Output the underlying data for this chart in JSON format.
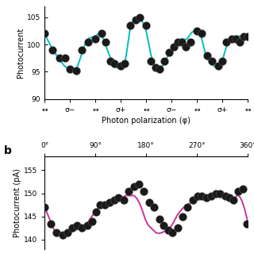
{
  "panel_a": {
    "ylabel": "Photocurrent",
    "xlabel": "Photon polarization (φ)",
    "ylim": [
      90,
      107
    ],
    "yticks": [
      90,
      95,
      100,
      105
    ],
    "curve_color": "#00BEBE",
    "dot_color": "#1a1a1a",
    "x_tick_labels": [
      "↔",
      "σ−",
      "↔",
      "σ+",
      "↔",
      "σ−",
      "↔",
      "σ+",
      "↔"
    ],
    "x_tick_positions": [
      0,
      0.125,
      0.25,
      0.375,
      0.5,
      0.625,
      0.75,
      0.875,
      1.0
    ],
    "scatter_x": [
      0.0,
      0.04,
      0.075,
      0.1,
      0.125,
      0.155,
      0.185,
      0.215,
      0.25,
      0.28,
      0.3,
      0.325,
      0.345,
      0.375,
      0.395,
      0.42,
      0.45,
      0.47,
      0.5,
      0.525,
      0.545,
      0.565,
      0.59,
      0.615,
      0.635,
      0.655,
      0.675,
      0.695,
      0.72,
      0.75,
      0.775,
      0.8,
      0.825,
      0.855,
      0.875,
      0.895,
      0.92,
      0.94,
      0.96,
      0.98,
      1.0
    ],
    "scatter_y": [
      102.0,
      99.0,
      97.5,
      97.5,
      95.5,
      95.2,
      99.0,
      100.5,
      101.0,
      102.0,
      100.5,
      97.0,
      96.5,
      96.0,
      96.5,
      103.5,
      104.5,
      105.0,
      103.5,
      97.0,
      95.8,
      95.5,
      97.0,
      98.5,
      99.5,
      100.5,
      100.5,
      99.5,
      100.5,
      102.5,
      102.0,
      98.0,
      97.0,
      96.0,
      97.0,
      100.5,
      101.0,
      101.0,
      100.5,
      101.5,
      101.5
    ],
    "curve_x": [
      0.0,
      0.02,
      0.05,
      0.08,
      0.1,
      0.125,
      0.155,
      0.185,
      0.215,
      0.25,
      0.275,
      0.3,
      0.325,
      0.345,
      0.375,
      0.4,
      0.42,
      0.445,
      0.47,
      0.5,
      0.525,
      0.545,
      0.565,
      0.59,
      0.615,
      0.635,
      0.655,
      0.68,
      0.7,
      0.72,
      0.745,
      0.77,
      0.795,
      0.82,
      0.845,
      0.87,
      0.895,
      0.92,
      0.945,
      0.97,
      1.0
    ],
    "curve_y": [
      102.0,
      100.5,
      98.5,
      97.0,
      96.0,
      95.5,
      95.5,
      98.5,
      101.0,
      101.5,
      102.0,
      100.0,
      97.5,
      96.0,
      95.8,
      97.5,
      102.5,
      104.5,
      104.5,
      102.5,
      98.0,
      96.2,
      95.8,
      96.5,
      98.5,
      99.5,
      100.5,
      101.0,
      101.0,
      102.0,
      102.5,
      101.5,
      98.0,
      96.5,
      95.8,
      96.5,
      99.5,
      101.0,
      101.5,
      101.5,
      101.5
    ]
  },
  "panel_b": {
    "ylabel": "Photocurrent (pA)",
    "ylim": [
      138,
      158
    ],
    "yticks": [
      140,
      145,
      150,
      155
    ],
    "curve_color": "#CC3399",
    "dot_color": "#1a1a1a",
    "x_tick_labels": [
      "0°",
      "90°",
      "180°",
      "270°",
      "360°"
    ],
    "x_tick_positions": [
      0,
      0.25,
      0.5,
      0.75,
      1.0
    ],
    "scatter_x": [
      0.0,
      0.03,
      0.06,
      0.09,
      0.115,
      0.135,
      0.16,
      0.185,
      0.21,
      0.235,
      0.255,
      0.275,
      0.295,
      0.32,
      0.345,
      0.365,
      0.39,
      0.415,
      0.44,
      0.465,
      0.49,
      0.515,
      0.54,
      0.565,
      0.585,
      0.61,
      0.63,
      0.655,
      0.68,
      0.705,
      0.73,
      0.755,
      0.775,
      0.795,
      0.82,
      0.845,
      0.865,
      0.89,
      0.91,
      0.93,
      0.955,
      0.975,
      0.995
    ],
    "scatter_y": [
      147.0,
      143.5,
      141.5,
      141.0,
      141.5,
      142.5,
      143.0,
      142.5,
      143.0,
      144.0,
      146.0,
      147.5,
      147.5,
      148.0,
      148.5,
      149.0,
      148.5,
      150.5,
      151.5,
      152.0,
      150.5,
      148.0,
      147.0,
      144.5,
      143.0,
      142.0,
      141.5,
      142.5,
      145.0,
      147.0,
      148.5,
      149.5,
      149.5,
      149.0,
      149.5,
      150.0,
      150.0,
      149.5,
      149.0,
      148.5,
      150.5,
      151.0,
      143.5
    ],
    "curve_x": [
      0.0,
      0.02,
      0.05,
      0.075,
      0.1,
      0.125,
      0.15,
      0.175,
      0.2,
      0.225,
      0.25,
      0.275,
      0.3,
      0.325,
      0.35,
      0.375,
      0.4,
      0.42,
      0.44,
      0.46,
      0.48,
      0.5,
      0.525,
      0.55,
      0.575,
      0.6,
      0.625,
      0.65,
      0.675,
      0.7,
      0.725,
      0.75,
      0.775,
      0.8,
      0.825,
      0.85,
      0.875,
      0.9,
      0.925,
      0.95,
      0.975,
      1.0
    ],
    "curve_y": [
      147.0,
      145.0,
      142.0,
      141.0,
      141.0,
      141.5,
      142.0,
      142.5,
      143.0,
      144.5,
      146.0,
      147.5,
      148.0,
      148.5,
      149.0,
      149.0,
      149.5,
      149.5,
      149.5,
      148.5,
      146.5,
      144.0,
      142.5,
      141.5,
      141.5,
      142.0,
      143.0,
      145.0,
      146.5,
      147.5,
      148.0,
      148.5,
      148.8,
      149.0,
      149.5,
      149.5,
      149.5,
      149.0,
      148.5,
      149.5,
      148.0,
      144.0
    ]
  },
  "bg_color": "#ffffff",
  "figure_label_b": "b"
}
